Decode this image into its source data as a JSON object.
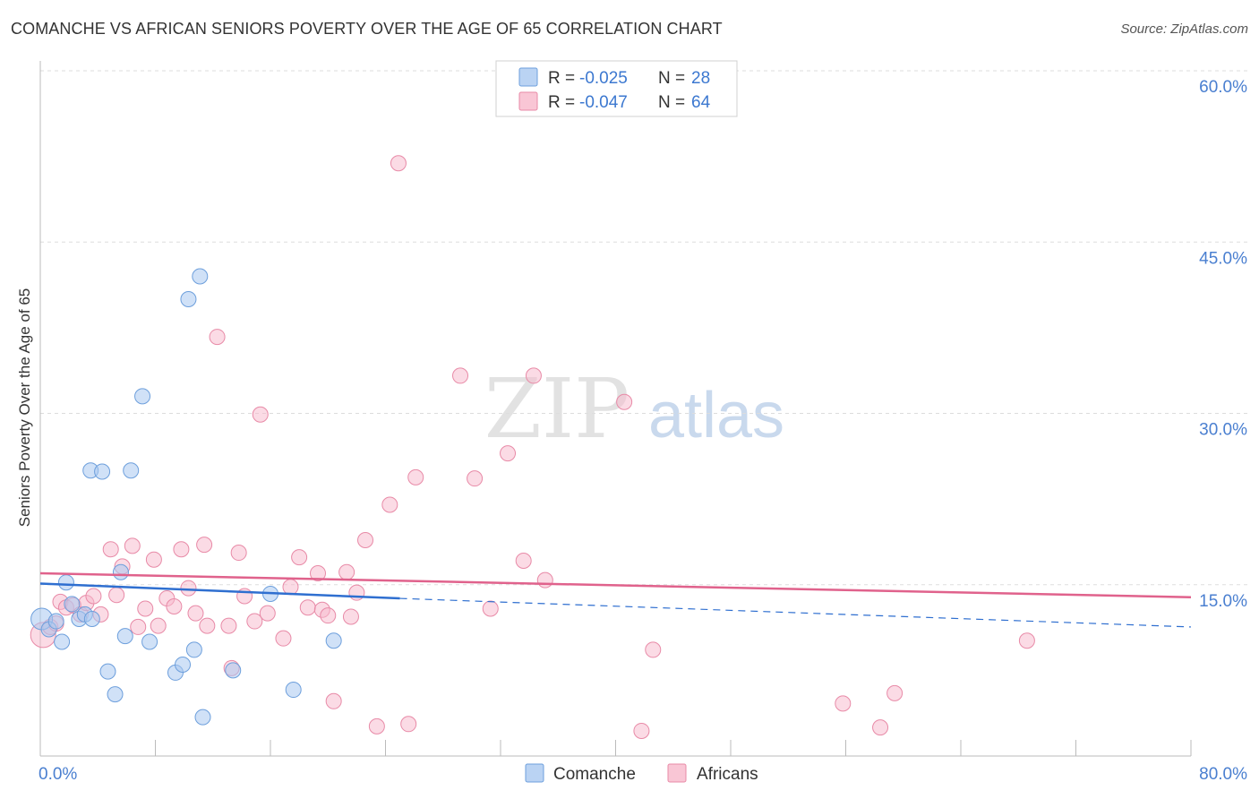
{
  "title": "COMANCHE VS AFRICAN SENIORS POVERTY OVER THE AGE OF 65 CORRELATION CHART",
  "source": "Source: ZipAtlas.com",
  "watermark": {
    "zip": "ZIP",
    "atlas": "atlas"
  },
  "colors": {
    "comanche_fill": "#a9c8f0",
    "comanche_stroke": "#6d9fdc",
    "comanche_line": "#2f6fd0",
    "africans_fill": "#f7b8cb",
    "africans_stroke": "#e88aa7",
    "africans_line": "#e0628c",
    "tick_label": "#4a7fd0",
    "grid": "#dddddd"
  },
  "chart_data": {
    "type": "scatter",
    "title": "COMANCHE VS AFRICAN SENIORS POVERTY OVER THE AGE OF 65 CORRELATION CHART",
    "xlabel": "",
    "ylabel": "Seniors Poverty Over the Age of 65",
    "xlim": [
      0,
      80
    ],
    "ylim": [
      0,
      60
    ],
    "x_tick_labels": [
      "0.0%",
      "80.0%"
    ],
    "y_ticks": [
      15,
      30,
      45,
      60
    ],
    "y_tick_labels": [
      "15.0%",
      "30.0%",
      "45.0%",
      "60.0%"
    ],
    "grid": true,
    "legend": {
      "position": "top-center",
      "entries": [
        {
          "series": "Comanche",
          "r_label": "R =",
          "r_value": "-0.025",
          "n_label": "N =",
          "n_value": "28"
        },
        {
          "series": "Africans",
          "r_label": "R =",
          "r_value": "-0.047",
          "n_label": "N =",
          "n_value": "64"
        }
      ]
    },
    "bottom_legend": [
      "Comanche",
      "Africans"
    ],
    "series": [
      {
        "name": "Comanche",
        "r": -0.025,
        "n": 28,
        "trend": {
          "x0": 0,
          "y0": 15.1,
          "x1": 25,
          "y1": 13.8,
          "dash_to_x": 80,
          "dash_to_y": 11.3
        },
        "points": [
          [
            0.1,
            12.0
          ],
          [
            0.6,
            11.1
          ],
          [
            1.1,
            11.8
          ],
          [
            1.5,
            10.0
          ],
          [
            1.8,
            15.2
          ],
          [
            2.2,
            13.3
          ],
          [
            2.7,
            12.0
          ],
          [
            3.1,
            12.4
          ],
          [
            3.6,
            12.0
          ],
          [
            3.5,
            25.0
          ],
          [
            4.3,
            24.9
          ],
          [
            4.7,
            7.4
          ],
          [
            5.2,
            5.4
          ],
          [
            5.6,
            16.1
          ],
          [
            5.9,
            10.5
          ],
          [
            6.3,
            25.0
          ],
          [
            7.1,
            31.5
          ],
          [
            7.6,
            10.0
          ],
          [
            9.4,
            7.3
          ],
          [
            9.9,
            8.0
          ],
          [
            10.3,
            40.0
          ],
          [
            10.7,
            9.3
          ],
          [
            11.3,
            3.4
          ],
          [
            11.1,
            42.0
          ],
          [
            13.4,
            7.5
          ],
          [
            16.0,
            14.2
          ],
          [
            17.6,
            5.8
          ],
          [
            20.4,
            10.1
          ]
        ]
      },
      {
        "name": "Africans",
        "r": -0.047,
        "n": 64,
        "trend": {
          "x0": 0,
          "y0": 16.0,
          "x1": 80,
          "y1": 13.9
        },
        "points": [
          [
            0.2,
            10.6
          ],
          [
            0.7,
            11.3
          ],
          [
            1.1,
            11.6
          ],
          [
            1.4,
            13.5
          ],
          [
            1.8,
            13.0
          ],
          [
            2.3,
            13.2
          ],
          [
            2.8,
            12.4
          ],
          [
            3.2,
            13.4
          ],
          [
            3.7,
            14.0
          ],
          [
            4.2,
            12.4
          ],
          [
            4.9,
            18.1
          ],
          [
            5.3,
            14.1
          ],
          [
            5.7,
            16.6
          ],
          [
            6.4,
            18.4
          ],
          [
            6.8,
            11.3
          ],
          [
            7.3,
            12.9
          ],
          [
            7.9,
            17.2
          ],
          [
            8.2,
            11.4
          ],
          [
            8.8,
            13.8
          ],
          [
            9.3,
            13.1
          ],
          [
            9.8,
            18.1
          ],
          [
            10.3,
            14.7
          ],
          [
            10.8,
            12.5
          ],
          [
            11.4,
            18.5
          ],
          [
            11.6,
            11.4
          ],
          [
            12.3,
            36.7
          ],
          [
            13.1,
            11.4
          ],
          [
            13.3,
            7.7
          ],
          [
            13.8,
            17.8
          ],
          [
            14.2,
            14.0
          ],
          [
            14.9,
            11.8
          ],
          [
            15.3,
            29.9
          ],
          [
            15.8,
            12.5
          ],
          [
            16.9,
            10.3
          ],
          [
            17.4,
            14.8
          ],
          [
            18.0,
            17.4
          ],
          [
            18.6,
            13.0
          ],
          [
            19.3,
            16.0
          ],
          [
            19.6,
            12.8
          ],
          [
            20.0,
            12.3
          ],
          [
            20.4,
            4.8
          ],
          [
            21.3,
            16.1
          ],
          [
            21.6,
            12.2
          ],
          [
            22.0,
            14.3
          ],
          [
            22.6,
            18.9
          ],
          [
            23.4,
            2.6
          ],
          [
            24.3,
            22.0
          ],
          [
            24.9,
            51.9
          ],
          [
            25.6,
            2.8
          ],
          [
            26.1,
            24.4
          ],
          [
            29.2,
            33.3
          ],
          [
            30.2,
            24.3
          ],
          [
            31.3,
            12.9
          ],
          [
            32.5,
            26.5
          ],
          [
            33.6,
            17.1
          ],
          [
            34.3,
            33.3
          ],
          [
            35.1,
            15.4
          ],
          [
            40.6,
            31.0
          ],
          [
            41.8,
            2.2
          ],
          [
            42.6,
            9.3
          ],
          [
            55.8,
            4.6
          ],
          [
            58.4,
            2.5
          ],
          [
            59.4,
            5.5
          ],
          [
            68.6,
            10.1
          ]
        ]
      }
    ]
  }
}
